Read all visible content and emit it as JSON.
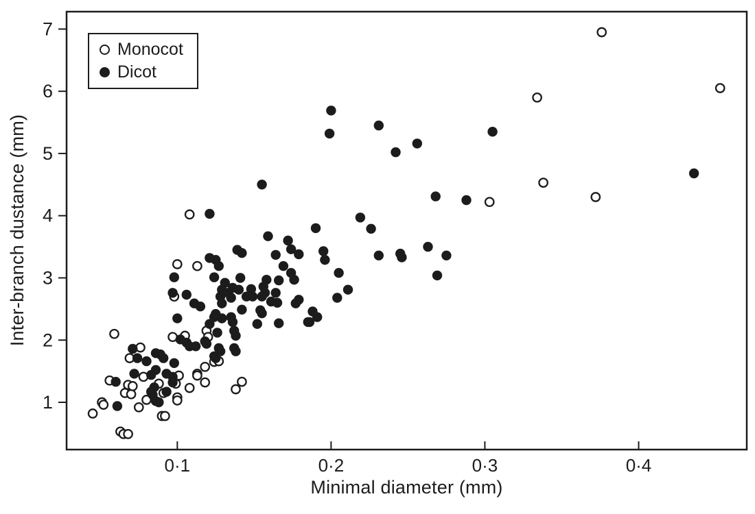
{
  "figure": {
    "background": "#ffffff",
    "ink_color": "#1c1c1c"
  },
  "chart_data": {
    "type": "scatter",
    "title": "",
    "xlabel": "Minimal diameter (mm)",
    "ylabel": "Inter-branch dustance (mm)",
    "xlim": [
      0.028,
      0.4703
    ],
    "ylim": [
      0.24,
      7.28
    ],
    "grid": false,
    "x_ticks": [
      {
        "value": 0.1,
        "label": "0·1"
      },
      {
        "value": 0.2,
        "label": "0·2"
      },
      {
        "value": 0.3,
        "label": "0·3"
      },
      {
        "value": 0.4,
        "label": "0·4"
      }
    ],
    "y_ticks": [
      {
        "value": 1,
        "label": "1"
      },
      {
        "value": 2,
        "label": "2"
      },
      {
        "value": 3,
        "label": "3"
      },
      {
        "value": 4,
        "label": "4"
      },
      {
        "value": 5,
        "label": "5"
      },
      {
        "value": 6,
        "label": "6"
      },
      {
        "value": 7,
        "label": "7"
      }
    ],
    "legend": {
      "position": "top-left",
      "items": [
        {
          "name": "Monocot",
          "marker": "open-circle"
        },
        {
          "name": "Dicot",
          "marker": "filled-circle"
        }
      ]
    },
    "series": [
      {
        "name": "Monocot",
        "marker": "open-circle",
        "points": [
          [
            0.045,
            0.82
          ],
          [
            0.051,
            1.0
          ],
          [
            0.052,
            0.96
          ],
          [
            0.056,
            1.35
          ],
          [
            0.059,
            2.1
          ],
          [
            0.063,
            0.53
          ],
          [
            0.065,
            0.49
          ],
          [
            0.068,
            0.49
          ],
          [
            0.066,
            1.15
          ],
          [
            0.068,
            1.28
          ],
          [
            0.069,
            1.71
          ],
          [
            0.07,
            1.13
          ],
          [
            0.071,
            1.26
          ],
          [
            0.075,
            0.92
          ],
          [
            0.076,
            1.88
          ],
          [
            0.078,
            1.41
          ],
          [
            0.08,
            1.04
          ],
          [
            0.088,
            1.3
          ],
          [
            0.09,
            0.78
          ],
          [
            0.092,
            0.78
          ],
          [
            0.091,
            1.15
          ],
          [
            0.097,
            2.05
          ],
          [
            0.098,
            2.7
          ],
          [
            0.099,
            1.3
          ],
          [
            0.1,
            1.08
          ],
          [
            0.1,
            1.03
          ],
          [
            0.1,
            3.22
          ],
          [
            0.101,
            1.43
          ],
          [
            0.105,
            2.07
          ],
          [
            0.108,
            1.23
          ],
          [
            0.108,
            4.02
          ],
          [
            0.113,
            1.46
          ],
          [
            0.113,
            1.43
          ],
          [
            0.113,
            3.19
          ],
          [
            0.118,
            1.57
          ],
          [
            0.118,
            1.32
          ],
          [
            0.119,
            2.15
          ],
          [
            0.12,
            2.05
          ],
          [
            0.124,
            1.65
          ],
          [
            0.127,
            1.66
          ],
          [
            0.138,
            1.21
          ],
          [
            0.142,
            1.33
          ],
          [
            0.303,
            4.22
          ],
          [
            0.334,
            5.9
          ],
          [
            0.338,
            4.53
          ],
          [
            0.372,
            4.3
          ],
          [
            0.376,
            6.95
          ],
          [
            0.453,
            6.05
          ]
        ]
      },
      {
        "name": "Dicot",
        "marker": "filled-circle",
        "points": [
          [
            0.06,
            1.33
          ],
          [
            0.061,
            0.94
          ],
          [
            0.071,
            1.86
          ],
          [
            0.072,
            1.46
          ],
          [
            0.074,
            1.71
          ],
          [
            0.08,
            1.66
          ],
          [
            0.083,
            1.44
          ],
          [
            0.083,
            1.17
          ],
          [
            0.084,
            1.12
          ],
          [
            0.085,
            1.24
          ],
          [
            0.086,
            1.79
          ],
          [
            0.086,
            1.52
          ],
          [
            0.086,
            1.02
          ],
          [
            0.088,
            1.0
          ],
          [
            0.089,
            1.77
          ],
          [
            0.091,
            1.71
          ],
          [
            0.093,
            1.46
          ],
          [
            0.093,
            1.17
          ],
          [
            0.097,
            1.41
          ],
          [
            0.097,
            1.32
          ],
          [
            0.097,
            2.76
          ],
          [
            0.098,
            1.63
          ],
          [
            0.098,
            3.01
          ],
          [
            0.1,
            2.35
          ],
          [
            0.102,
            2.01
          ],
          [
            0.106,
            1.96
          ],
          [
            0.106,
            2.73
          ],
          [
            0.108,
            1.9
          ],
          [
            0.111,
            2.59
          ],
          [
            0.112,
            1.9
          ],
          [
            0.115,
            2.54
          ],
          [
            0.118,
            1.98
          ],
          [
            0.119,
            1.94
          ],
          [
            0.121,
            2.26
          ],
          [
            0.121,
            3.32
          ],
          [
            0.121,
            4.03
          ],
          [
            0.124,
            1.74
          ],
          [
            0.124,
            2.37
          ],
          [
            0.124,
            3.01
          ],
          [
            0.125,
            1.71
          ],
          [
            0.125,
            2.42
          ],
          [
            0.125,
            3.29
          ],
          [
            0.126,
            2.12
          ],
          [
            0.127,
            1.87
          ],
          [
            0.127,
            3.19
          ],
          [
            0.128,
            1.82
          ],
          [
            0.128,
            2.7
          ],
          [
            0.129,
            2.35
          ],
          [
            0.129,
            2.59
          ],
          [
            0.129,
            2.81
          ],
          [
            0.131,
            2.92
          ],
          [
            0.133,
            2.76
          ],
          [
            0.135,
            2.37
          ],
          [
            0.135,
            2.68
          ],
          [
            0.136,
            2.29
          ],
          [
            0.136,
            2.84
          ],
          [
            0.137,
            1.87
          ],
          [
            0.137,
            2.15
          ],
          [
            0.138,
            1.82
          ],
          [
            0.138,
            2.07
          ],
          [
            0.139,
            3.45
          ],
          [
            0.14,
            2.81
          ],
          [
            0.141,
            3.0
          ],
          [
            0.142,
            2.49
          ],
          [
            0.142,
            3.4
          ],
          [
            0.145,
            2.7
          ],
          [
            0.148,
            2.82
          ],
          [
            0.149,
            2.7
          ],
          [
            0.152,
            2.26
          ],
          [
            0.154,
            2.48
          ],
          [
            0.155,
            2.43
          ],
          [
            0.155,
            2.7
          ],
          [
            0.155,
            4.5
          ],
          [
            0.156,
            2.86
          ],
          [
            0.157,
            2.76
          ],
          [
            0.158,
            2.97
          ],
          [
            0.159,
            3.67
          ],
          [
            0.161,
            2.62
          ],
          [
            0.164,
            2.76
          ],
          [
            0.164,
            3.37
          ],
          [
            0.165,
            2.6
          ],
          [
            0.166,
            2.27
          ],
          [
            0.166,
            2.96
          ],
          [
            0.169,
            3.19
          ],
          [
            0.172,
            3.6
          ],
          [
            0.174,
            3.08
          ],
          [
            0.174,
            3.46
          ],
          [
            0.176,
            2.97
          ],
          [
            0.177,
            2.59
          ],
          [
            0.179,
            2.65
          ],
          [
            0.179,
            3.38
          ],
          [
            0.185,
            2.29
          ],
          [
            0.186,
            2.29
          ],
          [
            0.188,
            2.46
          ],
          [
            0.19,
            3.8
          ],
          [
            0.191,
            2.37
          ],
          [
            0.195,
            3.43
          ],
          [
            0.196,
            3.29
          ],
          [
            0.199,
            5.32
          ],
          [
            0.2,
            5.69
          ],
          [
            0.204,
            2.68
          ],
          [
            0.205,
            3.08
          ],
          [
            0.211,
            2.81
          ],
          [
            0.219,
            3.97
          ],
          [
            0.226,
            3.79
          ],
          [
            0.231,
            3.36
          ],
          [
            0.231,
            5.45
          ],
          [
            0.242,
            5.02
          ],
          [
            0.245,
            3.39
          ],
          [
            0.246,
            3.33
          ],
          [
            0.256,
            5.16
          ],
          [
            0.263,
            3.5
          ],
          [
            0.268,
            4.31
          ],
          [
            0.269,
            3.04
          ],
          [
            0.275,
            3.36
          ],
          [
            0.288,
            4.25
          ],
          [
            0.305,
            5.35
          ],
          [
            0.436,
            4.68
          ]
        ]
      }
    ]
  }
}
